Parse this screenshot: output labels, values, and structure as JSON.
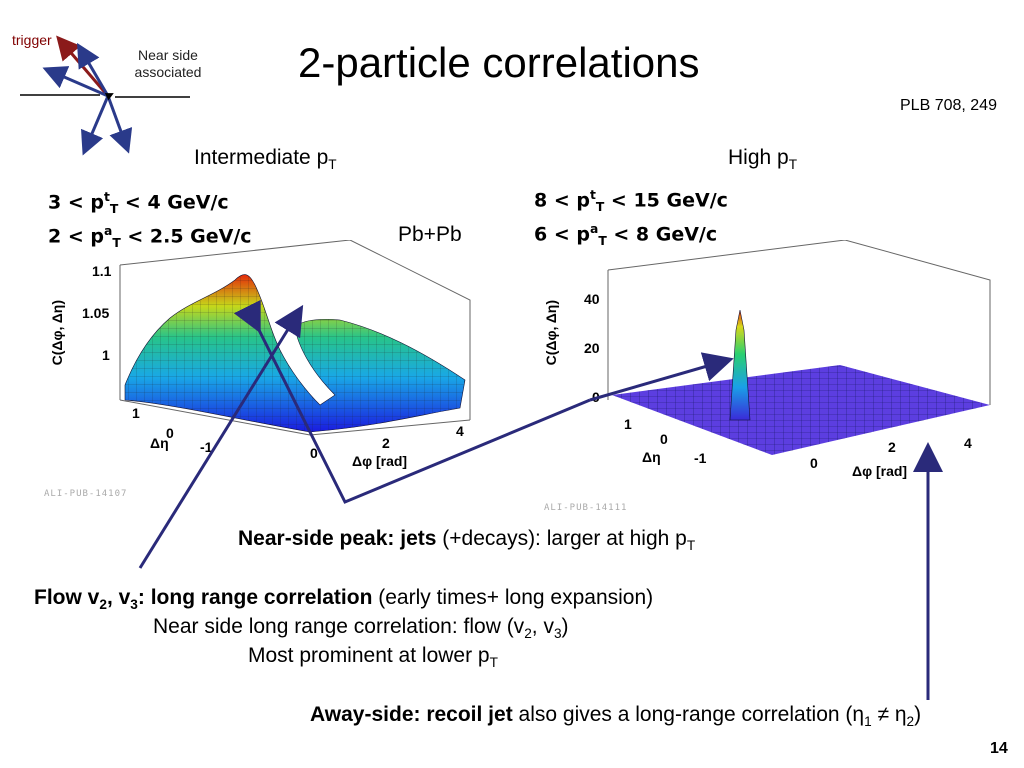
{
  "slide": {
    "title": "2-particle correlations",
    "reference": "PLB 708, 249",
    "page_number": "14",
    "diagram": {
      "trigger_label": "trigger",
      "near_side_line1": "Near side",
      "near_side_line2": "associated"
    },
    "sections": {
      "intermediate": "Intermediate p",
      "intermediate_sub": "T",
      "high": "High p",
      "high_sub": "T"
    },
    "system_label": "Pb+Pb",
    "left_plot": {
      "cut1": "3 < p",
      "cut1_sup": "t",
      "cut1_sub": "T",
      "cut1_range": " < 4 GeV/c",
      "cut2": "2 < p",
      "cut2_sup": "a",
      "cut2_sub": "T",
      "cut2_range": " < 2.5 GeV/c",
      "zlabel": "C(Δφ, Δη)",
      "zticks": [
        "1.1",
        "1.05",
        "1"
      ],
      "eta_ticks": [
        "1",
        "0",
        "-1"
      ],
      "eta_label": "Δη",
      "phi_ticks": [
        "0",
        "2",
        "4"
      ],
      "phi_label": "Δφ [rad]",
      "watermark": "ALI-PUB-14107"
    },
    "right_plot": {
      "cut1": "8 < p",
      "cut1_sup": "t",
      "cut1_sub": "T",
      "cut1_range": " < 15 GeV/c",
      "cut2": "6 < p",
      "cut2_sup": "a",
      "cut2_sub": "T",
      "cut2_range": " < 8 GeV/c",
      "zlabel": "C(Δφ, Δη)",
      "zticks": [
        "40",
        "20",
        "0"
      ],
      "eta_ticks": [
        "1",
        "0",
        "-1"
      ],
      "eta_label": "Δη",
      "phi_ticks": [
        "0",
        "2",
        "4"
      ],
      "phi_label": "Δφ [rad]",
      "watermark": "ALI-PUB-14111"
    },
    "captions": {
      "near_bold": "Near-side peak: jets",
      "near_rest": " (+decays): larger at high p",
      "near_sub": "T",
      "flow_bold": "Flow v",
      "flow_sub2": "2",
      "flow_comma": ", v",
      "flow_sub3": "3",
      "flow_bold2": ": long range correlation",
      "flow_rest": " (early times+ long expansion)",
      "flow_line2": "Near side long range correlation: flow (v",
      "flow_line2_sub2": "2",
      "flow_line2_mid": ", v",
      "flow_line2_sub3": "3",
      "flow_line2_end": ")",
      "flow_line3": "Most prominent at lower p",
      "flow_line3_sub": "T",
      "away_bold": "Away-side: recoil jet",
      "away_rest": " also gives a long-range correlation (η",
      "away_sub1": "1",
      "away_neq": " ≠ η",
      "away_sub2": "2",
      "away_end": ")"
    }
  }
}
